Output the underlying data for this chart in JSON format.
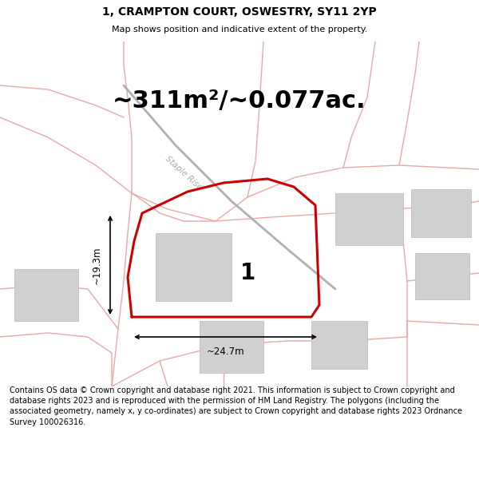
{
  "title": "1, CRAMPTON COURT, OSWESTRY, SY11 2YP",
  "subtitle": "Map shows position and indicative extent of the property.",
  "area_text": "~311m²/~0.077ac.",
  "label_number": "1",
  "dim_horizontal": "~24.7m",
  "dim_vertical": "~19.3m",
  "road_label": "Staple Rise",
  "footer": "Contains OS data © Crown copyright and database right 2021. This information is subject to Crown copyright and database rights 2023 and is reproduced with the permission of HM Land Registry. The polygons (including the associated geometry, namely x, y co-ordinates) are subject to Crown copyright and database rights 2023 Ordnance Survey 100026316.",
  "map_bg": "#ffffff",
  "plot_color": "#cc0000",
  "road_color": "#e8a8a8",
  "building_color": "#d0d0d0",
  "title_fontsize": 10,
  "subtitle_fontsize": 8,
  "area_fontsize": 22,
  "footer_fontsize": 7
}
